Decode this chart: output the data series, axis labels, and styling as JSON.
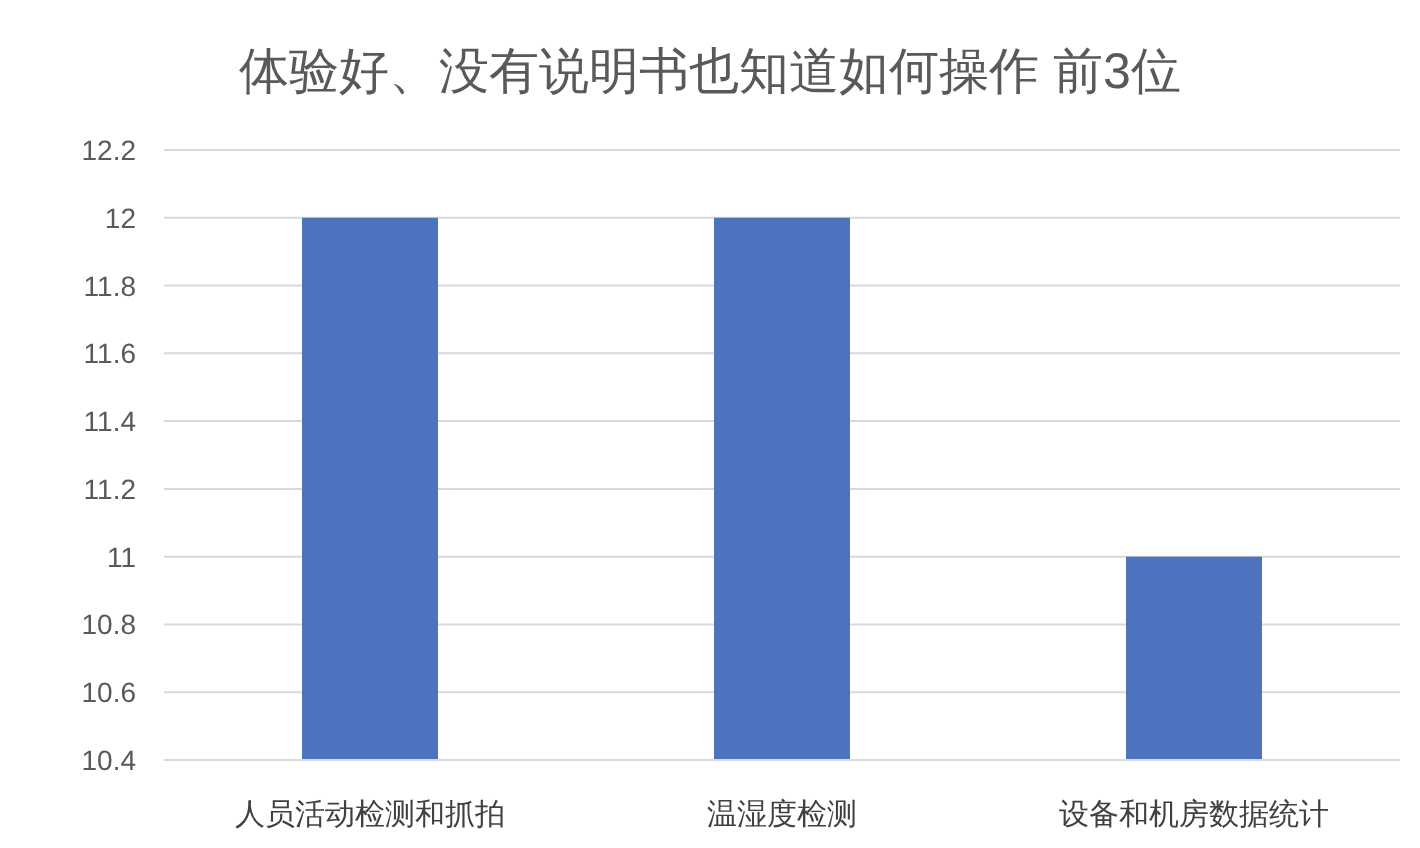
{
  "chart_data": {
    "type": "bar",
    "title": "体验好、没有说明书也知道如何操作 前3位",
    "categories": [
      "人员活动检测和抓拍",
      "温湿度检测",
      "设备和机房数据统计"
    ],
    "values": [
      12,
      12,
      11
    ],
    "color": "#4e73be",
    "ylim": [
      10.4,
      12.2
    ],
    "yticks": [
      10.4,
      10.6,
      10.8,
      11,
      11.2,
      11.4,
      11.6,
      11.8,
      12,
      12.2
    ],
    "grid": "y"
  }
}
